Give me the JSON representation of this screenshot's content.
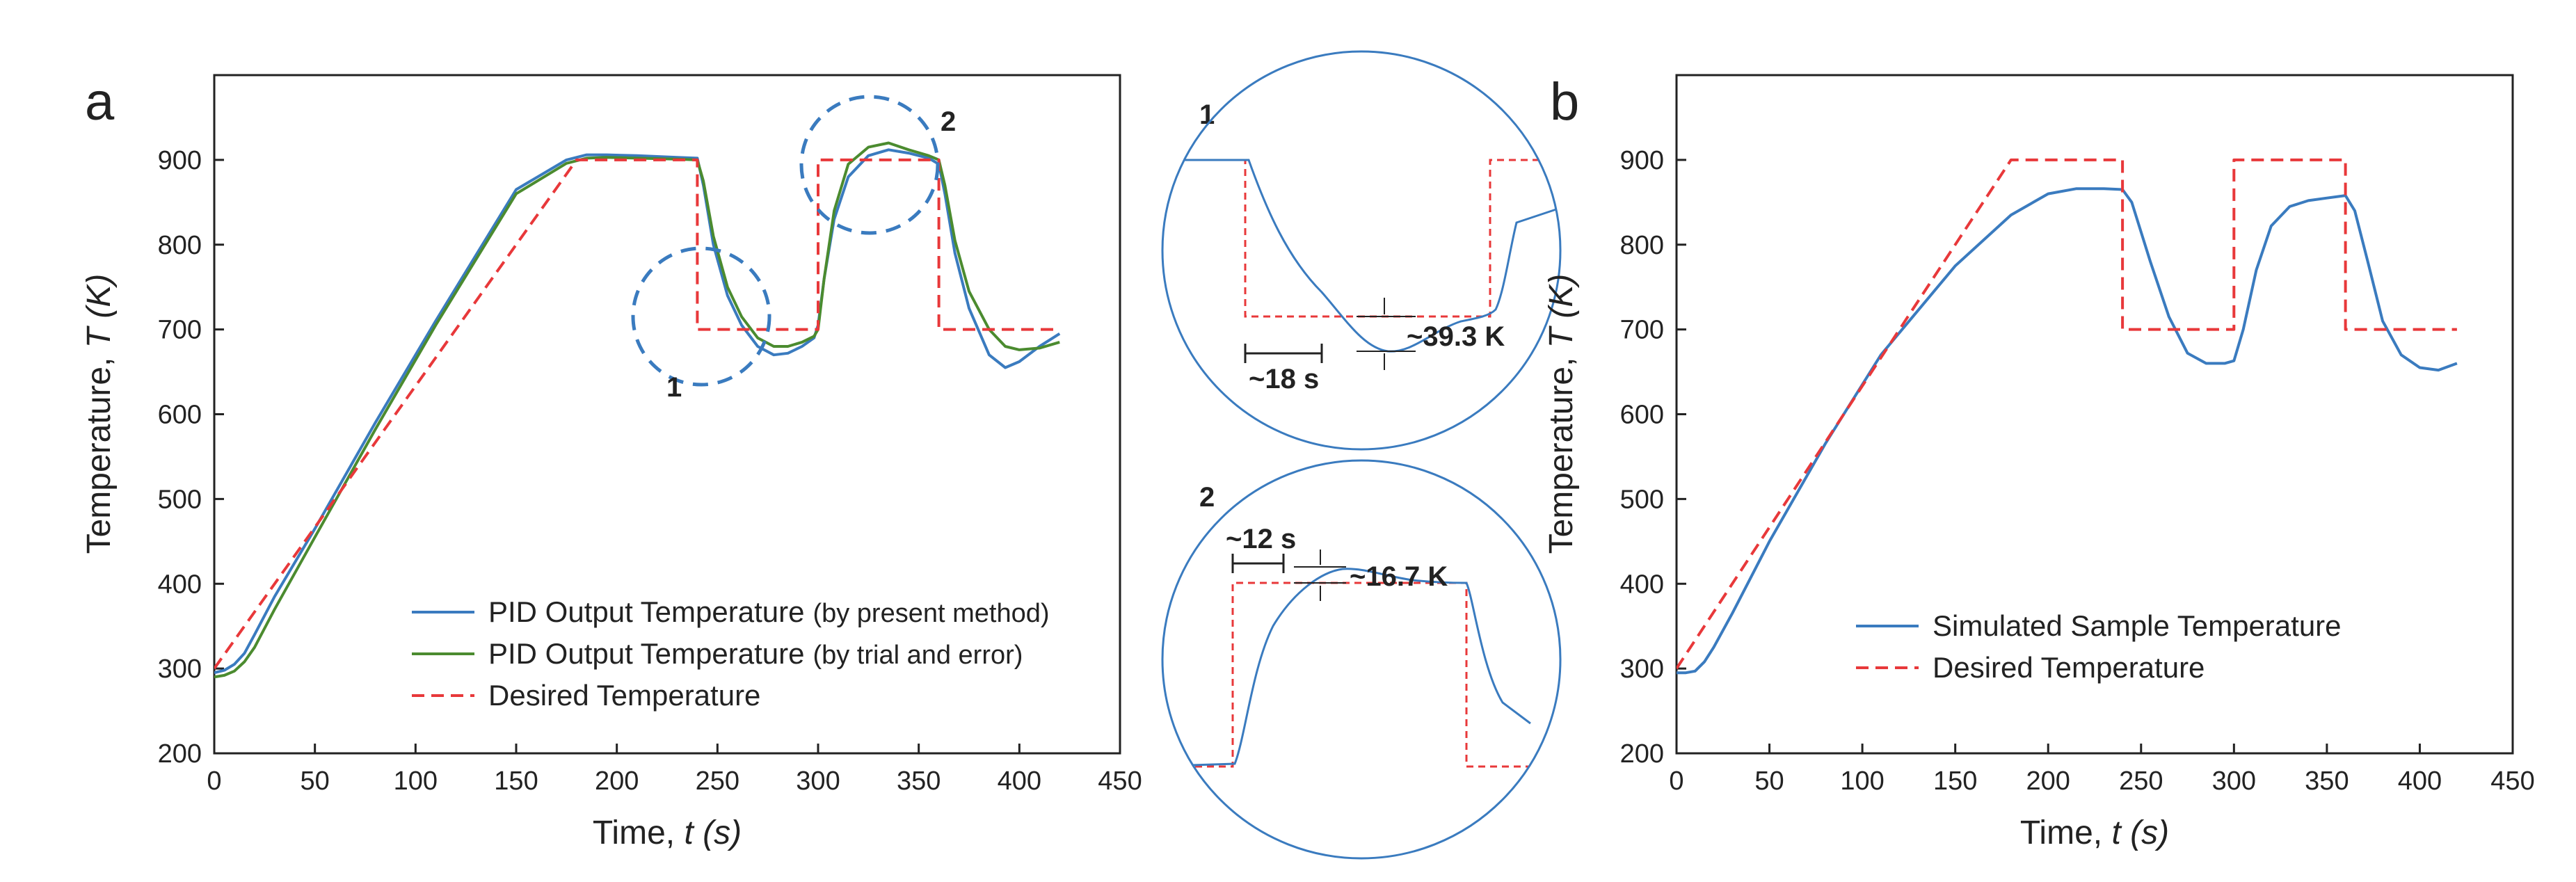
{
  "chart_data": [
    {
      "id": "a",
      "panel_label": "a",
      "type": "line",
      "title": "",
      "xlabel": "Time, ",
      "xlabel_var": "t (s)",
      "ylabel": "Temperature, ",
      "ylabel_var": "T (K)",
      "xlim": [
        0,
        450
      ],
      "ylim": [
        200,
        1000
      ],
      "xticks": [
        "0",
        "50",
        "100",
        "150",
        "200",
        "250",
        "300",
        "350",
        "400",
        "450"
      ],
      "yticks": [
        "200",
        "300",
        "400",
        "500",
        "600",
        "700",
        "800",
        "900"
      ],
      "grid": false,
      "legend_position": "bottom-center",
      "series": [
        {
          "name": "PID Output Temperature",
          "name_suffix": "(by present method)",
          "color": "#3a7bbf",
          "style": "solid",
          "x": [
            0,
            5,
            10,
            15,
            20,
            30,
            50,
            80,
            110,
            150,
            175,
            185,
            195,
            210,
            230,
            240,
            243,
            248,
            255,
            262,
            270,
            278,
            285,
            292,
            298,
            300,
            303,
            308,
            315,
            325,
            335,
            345,
            355,
            360,
            363,
            368,
            375,
            385,
            393,
            400,
            410,
            420
          ],
          "y": [
            295,
            298,
            305,
            318,
            340,
            385,
            465,
            590,
            710,
            865,
            900,
            906,
            906,
            905,
            903,
            902,
            870,
            800,
            740,
            705,
            680,
            670,
            672,
            680,
            690,
            705,
            760,
            830,
            880,
            905,
            912,
            908,
            902,
            895,
            860,
            790,
            725,
            670,
            655,
            662,
            680,
            695
          ]
        },
        {
          "name": "PID Output Temperature",
          "name_suffix": "(by trial and error)",
          "color": "#4b8b2f",
          "style": "solid",
          "x": [
            0,
            5,
            10,
            15,
            20,
            30,
            50,
            80,
            110,
            150,
            175,
            185,
            195,
            210,
            230,
            240,
            243,
            248,
            255,
            262,
            270,
            278,
            285,
            292,
            298,
            300,
            303,
            308,
            315,
            325,
            335,
            345,
            355,
            360,
            363,
            368,
            375,
            385,
            393,
            400,
            410,
            420
          ],
          "y": [
            290,
            292,
            297,
            308,
            325,
            370,
            455,
            582,
            705,
            860,
            896,
            902,
            903,
            902,
            901,
            900,
            875,
            810,
            750,
            715,
            690,
            680,
            680,
            685,
            692,
            700,
            760,
            840,
            895,
            915,
            920,
            912,
            905,
            900,
            870,
            805,
            745,
            700,
            680,
            676,
            678,
            685
          ]
        },
        {
          "name": "Desired Temperature",
          "name_suffix": "",
          "color": "#e8383a",
          "style": "dashed",
          "x": [
            0,
            180,
            240,
            240,
            300,
            300,
            360,
            360,
            420
          ],
          "y": [
            300,
            900,
            900,
            700,
            700,
            900,
            900,
            700,
            700
          ]
        }
      ],
      "annotations": [
        {
          "label": "1",
          "note": "dashed circle around undershoot near t≈265 s"
        },
        {
          "label": "2",
          "note": "dashed circle around overshoot near t≈325 s"
        }
      ]
    },
    {
      "id": "b",
      "panel_label": "b",
      "type": "line",
      "title": "",
      "xlabel": "Time, ",
      "xlabel_var": "t (s)",
      "ylabel": "Temperature, ",
      "ylabel_var": "T (K)",
      "xlim": [
        0,
        450
      ],
      "ylim": [
        200,
        1000
      ],
      "xticks": [
        "0",
        "50",
        "100",
        "150",
        "200",
        "250",
        "300",
        "350",
        "400",
        "450"
      ],
      "yticks": [
        "200",
        "300",
        "400",
        "500",
        "600",
        "700",
        "800",
        "900"
      ],
      "grid": false,
      "legend_position": "bottom-center",
      "series": [
        {
          "name": "Simulated Sample Temperature",
          "color": "#3a7bbf",
          "style": "solid",
          "x": [
            0,
            5,
            10,
            15,
            20,
            30,
            50,
            80,
            110,
            150,
            180,
            200,
            215,
            230,
            240,
            245,
            255,
            265,
            275,
            285,
            295,
            300,
            305,
            312,
            320,
            330,
            340,
            350,
            360,
            365,
            372,
            380,
            390,
            400,
            410,
            420
          ],
          "y": [
            295,
            295,
            297,
            308,
            325,
            365,
            450,
            565,
            670,
            775,
            835,
            860,
            866,
            866,
            865,
            850,
            780,
            715,
            672,
            660,
            660,
            663,
            700,
            770,
            822,
            845,
            852,
            855,
            858,
            840,
            780,
            710,
            670,
            655,
            652,
            660
          ]
        },
        {
          "name": "Desired Temperature",
          "color": "#e8383a",
          "style": "dashed",
          "x": [
            0,
            180,
            240,
            240,
            300,
            300,
            360,
            360,
            420
          ],
          "y": [
            300,
            900,
            900,
            700,
            700,
            900,
            900,
            700,
            700
          ]
        }
      ]
    }
  ],
  "insets": [
    {
      "id": "1",
      "label": "1",
      "delay_label": "~18 s",
      "deviation_label": "~39.3 K"
    },
    {
      "id": "2",
      "label": "2",
      "delay_label": "~12 s",
      "deviation_label": "~16.7 K"
    }
  ]
}
